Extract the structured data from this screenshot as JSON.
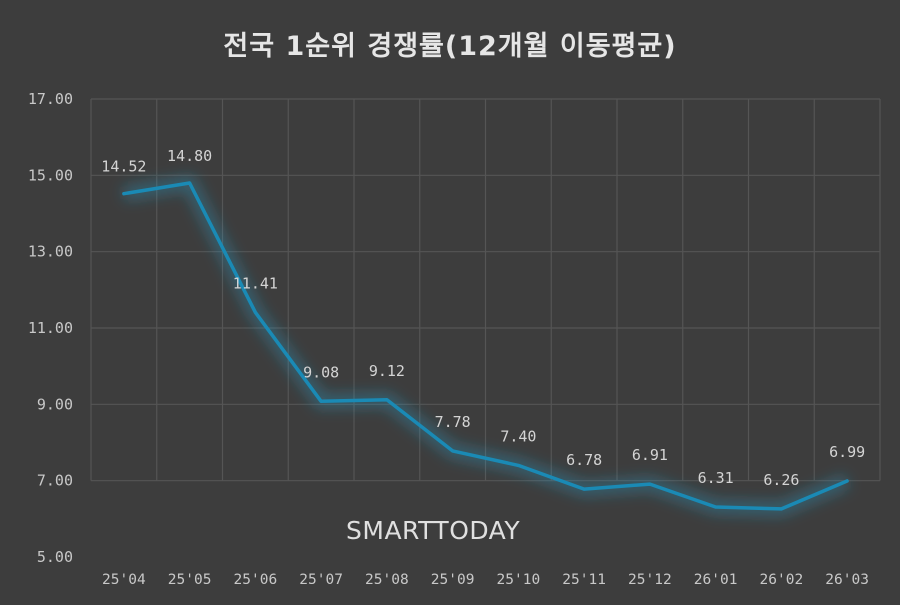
{
  "title": "전국 1순위 경쟁률(12개월 이동평균)",
  "watermark": "SMARTTODAY",
  "colors": {
    "background": "#3d3d3d",
    "grid": "#555555",
    "line": "#1a8ab5",
    "glow": "#2aa6d6",
    "text": "#d4d4d4"
  },
  "chart_data": {
    "type": "line",
    "title": "전국 1순위 경쟁률(12개월 이동평균)",
    "xlabel": "",
    "ylabel": "",
    "categories": [
      "25'04",
      "25'05",
      "25'06",
      "25'07",
      "25'08",
      "25'09",
      "25'10",
      "25'11",
      "25'12",
      "26'01",
      "26'02",
      "26'03"
    ],
    "series": [
      {
        "name": "전국 1순위 경쟁률 (12개월 이동평균)",
        "values": [
          14.52,
          14.8,
          11.41,
          9.08,
          9.12,
          7.78,
          7.4,
          6.78,
          6.91,
          6.31,
          6.26,
          6.99
        ],
        "labels": [
          "14.52",
          "14.80",
          "11.41",
          "9.08",
          "9.12",
          "7.78",
          "7.40",
          "6.78",
          "6.91",
          "6.31",
          "6.26",
          "6.99"
        ]
      }
    ],
    "ylim": [
      5,
      17
    ],
    "yticks": [
      "17.00",
      "15.00",
      "13.00",
      "11.00",
      "9.00",
      "7.00",
      "5.00"
    ],
    "ytick_values": [
      17,
      15,
      13,
      11,
      9,
      7,
      5
    ],
    "grid": true,
    "legend": "none",
    "data_labels": true
  }
}
